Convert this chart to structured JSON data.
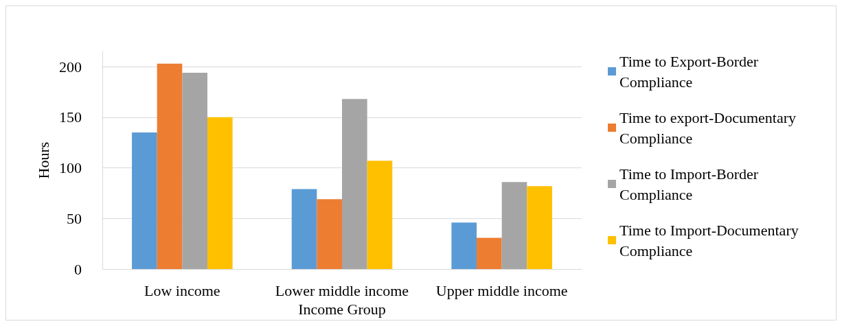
{
  "chart_data": {
    "type": "bar",
    "xlabel": "Income Group",
    "ylabel": "Hours",
    "categories": [
      "Low income",
      "Lower middle income",
      "Upper middle income"
    ],
    "series": [
      {
        "name": "Time to Export-Border Compliance",
        "color": "#5b9bd5",
        "values": [
          135,
          79,
          46
        ]
      },
      {
        "name": "Time to export-Documentary Compliance",
        "color": "#ed7d31",
        "values": [
          203,
          69,
          31
        ]
      },
      {
        "name": "Time to Import-Border Compliance",
        "color": "#a5a5a5",
        "values": [
          194,
          168,
          86
        ]
      },
      {
        "name": "Time to Import-Documentary Compliance",
        "color": "#ffc000",
        "values": [
          150,
          107,
          82
        ]
      }
    ],
    "ylim": [
      0,
      215
    ],
    "yticks": [
      0,
      50,
      100,
      150,
      200
    ],
    "grid": "y",
    "legend": "right"
  }
}
